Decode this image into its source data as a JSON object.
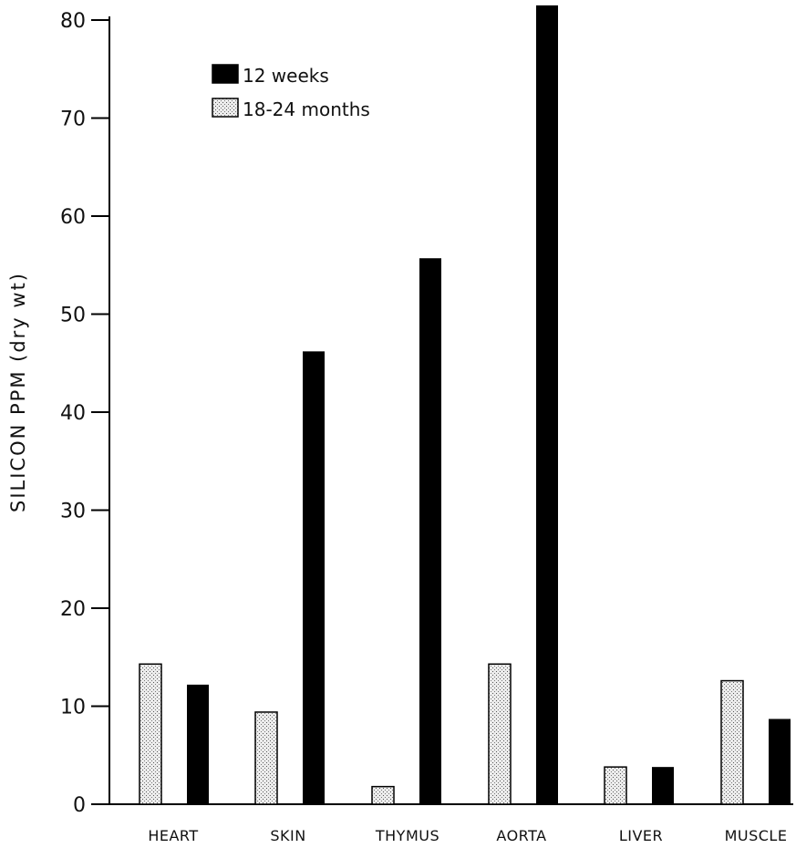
{
  "chart_data": {
    "type": "bar",
    "title": "",
    "xlabel": "",
    "ylabel": "SILICON PPM (dry wt)",
    "ylim": [
      0,
      80
    ],
    "yticks": [
      "0",
      "10",
      "20",
      "30",
      "40",
      "50",
      "60",
      "70",
      "80"
    ],
    "categories": [
      "HEART",
      "SKIN",
      "THYMUS",
      "AORTA",
      "LIVER",
      "MUSCLE"
    ],
    "series": [
      {
        "name": "18-24 months",
        "values": [
          14.3,
          9.4,
          1.8,
          14.3,
          3.8,
          12.6
        ],
        "pattern": "stippled",
        "color": "#e6e6e6"
      },
      {
        "name": "12 weeks",
        "values": [
          12.2,
          46.2,
          55.7,
          81.5,
          3.8,
          8.7
        ],
        "pattern": "solid",
        "color": "#000000"
      }
    ],
    "legend": {
      "placement": "top-left",
      "entries": [
        {
          "label": "12 weeks",
          "series": "12 weeks"
        },
        {
          "label": "18-24 months",
          "series": "18-24 months"
        }
      ]
    },
    "grid": false
  }
}
